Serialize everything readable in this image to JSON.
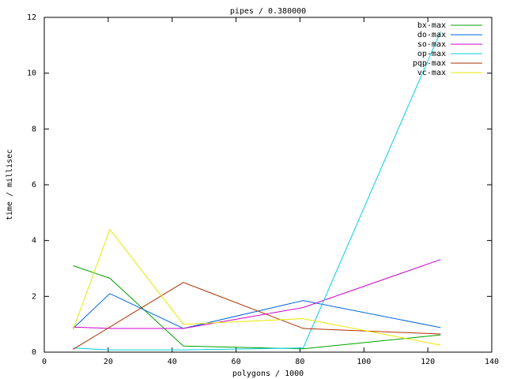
{
  "chart_data": {
    "type": "line",
    "title": "pipes / 0.380000",
    "x_label": "polygons / 1000",
    "y_label": "time / millisec",
    "x": [
      9,
      20.5,
      43.5,
      81,
      124
    ],
    "series": [
      {
        "name": "bx-max",
        "color": "#00a000",
        "values": [
          3.1,
          2.65,
          0.22,
          0.12,
          0.62
        ]
      },
      {
        "name": "do-max",
        "color": "#0066dd",
        "values": [
          0.85,
          2.1,
          0.85,
          1.85,
          0.88
        ]
      },
      {
        "name": "so-max",
        "color": "#cc00cc",
        "values": [
          0.9,
          0.85,
          0.85,
          1.6,
          3.32
        ]
      },
      {
        "name": "op-max",
        "color": "#00d0e0",
        "values": [
          0.15,
          0.08,
          0.08,
          0.15,
          11.5
        ]
      },
      {
        "name": "pqp-max",
        "color": "#b03000",
        "values": [
          0.1,
          0.9,
          2.5,
          0.85,
          0.65
        ]
      },
      {
        "name": "vc-max",
        "color": "#e8e800",
        "values": [
          0.8,
          4.4,
          1.0,
          1.2,
          0.25
        ]
      }
    ],
    "xlim": [
      0,
      140
    ],
    "xticks": [
      0,
      20,
      40,
      60,
      80,
      100,
      120,
      140
    ],
    "ylim": [
      0,
      12
    ],
    "yticks": [
      0,
      2,
      4,
      6,
      8,
      10,
      12
    ],
    "grid": false,
    "legend": "top-right"
  }
}
